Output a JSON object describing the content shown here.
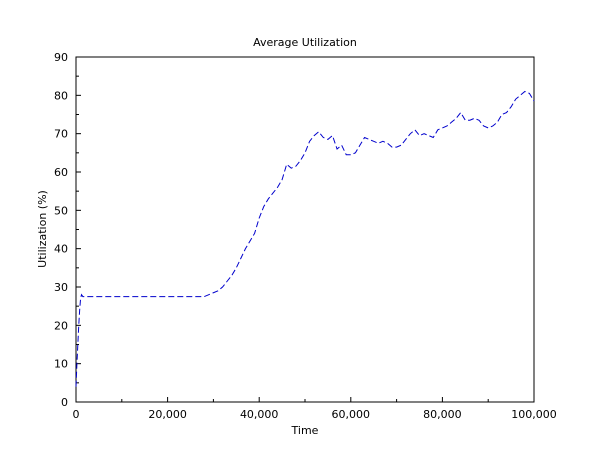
{
  "chart_data": {
    "type": "line",
    "title": "Average Utilization",
    "xlabel": "Time",
    "ylabel": "Utilization (%)",
    "xlim": [
      0,
      100000
    ],
    "ylim": [
      0,
      90
    ],
    "x_ticks": [
      0,
      20000,
      40000,
      60000,
      80000,
      100000
    ],
    "x_tick_labels": [
      "0",
      "20,000",
      "40,000",
      "60,000",
      "80,000",
      "100,000"
    ],
    "y_ticks": [
      0,
      10,
      20,
      30,
      40,
      50,
      60,
      70,
      80,
      90
    ],
    "y_tick_labels": [
      "0",
      "10",
      "20",
      "30",
      "40",
      "50",
      "60",
      "70",
      "80",
      "90"
    ],
    "grid": false,
    "legend": "none",
    "series": [
      {
        "color": "#0000cc",
        "line_style": "dashed",
        "x": [
          0,
          200,
          400,
          600,
          800,
          1000,
          1200,
          1500,
          5000,
          10000,
          15000,
          20000,
          25000,
          28000,
          29000,
          30000,
          31000,
          32000,
          33000,
          34000,
          35000,
          36000,
          37000,
          38000,
          39000,
          40000,
          41000,
          42000,
          43000,
          44000,
          45000,
          46000,
          47000,
          48000,
          49000,
          50000,
          51000,
          52000,
          53000,
          54000,
          55000,
          56000,
          57000,
          58000,
          59000,
          60000,
          61000,
          62000,
          63000,
          64000,
          65000,
          66000,
          67000,
          68000,
          69000,
          70000,
          71000,
          72000,
          73000,
          74000,
          75000,
          76000,
          77000,
          78000,
          79000,
          80000,
          81000,
          82000,
          83000,
          84000,
          85000,
          86000,
          87000,
          88000,
          89000,
          90000,
          91000,
          92000,
          93000,
          94000,
          95000,
          96000,
          97000,
          98000,
          99000,
          100000
        ],
        "y": [
          4,
          10,
          15,
          20,
          24,
          27,
          28,
          27.5,
          27.5,
          27.5,
          27.5,
          27.5,
          27.5,
          27.5,
          28,
          28.5,
          29,
          30,
          31.5,
          33,
          35,
          37.5,
          40,
          42,
          44,
          48,
          51,
          53,
          54.5,
          56,
          58,
          62,
          61,
          61.5,
          63,
          65,
          68,
          69.5,
          70.5,
          69,
          68.5,
          69.5,
          66,
          67,
          64.5,
          64.5,
          65,
          67,
          69,
          68.5,
          68,
          67.5,
          68,
          67.5,
          66.5,
          66.5,
          67,
          68.5,
          70,
          71,
          69.5,
          70,
          69.5,
          69,
          71,
          71.5,
          72,
          73,
          74,
          75.5,
          73.5,
          73.5,
          74,
          73.5,
          72,
          71.5,
          72,
          73,
          75,
          75.5,
          77,
          79,
          80,
          81,
          80.5,
          78.5
        ]
      }
    ]
  }
}
